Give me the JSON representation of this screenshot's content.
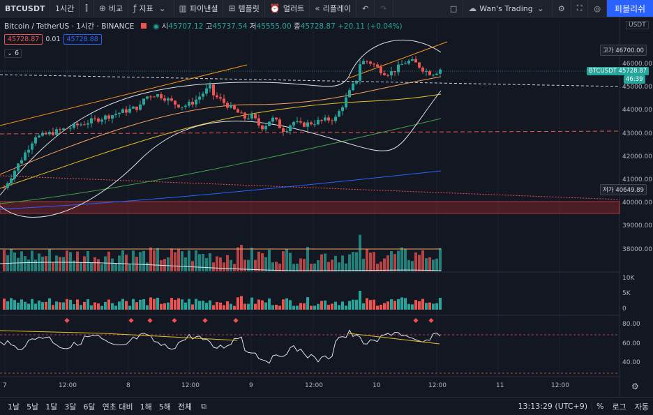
{
  "toolbar": {
    "symbol": "BTCUSDT",
    "interval": "1시간",
    "compare": "비교",
    "indicators": "지표",
    "pine": "파이낸셜",
    "templates": "템플릿",
    "alert": "얼러트",
    "replay": "리플레이",
    "layout_name": "Wan's Trading",
    "publish": "퍼블리쉬"
  },
  "legend": {
    "title": "Bitcoin / TetherUS · 1시간 · BINANCE",
    "open_label": "시",
    "open": "45707.12",
    "high_label": "고",
    "high": "45737.54",
    "low_label": "저",
    "low": "45555.00",
    "close_label": "종",
    "close": "45728.87",
    "change": "+20.11 (+0.04%)",
    "sell_price": "45728.87",
    "spread": "0.01",
    "buy_price": "45728.88",
    "collapse_count": "6"
  },
  "price_axis": {
    "currency": "USDT",
    "ticks": [
      "46000.00",
      "45000.00",
      "44000.00",
      "43000.00",
      "42000.00",
      "41000.00",
      "40000.00",
      "39000.00",
      "38000.00"
    ],
    "high_tag_label": "고가",
    "high_tag_value": "46700.00",
    "current_tag_symbol": "BTCUSDT",
    "current_tag_value": "45728.87",
    "countdown": "46:39",
    "low_tag_label": "저가",
    "low_tag_value": "40649.89"
  },
  "volume_axis": {
    "ticks": [
      "10K",
      "5K",
      "0"
    ]
  },
  "rsi_axis": {
    "ticks": [
      "80.00",
      "60.00",
      "40.00"
    ]
  },
  "time_axis": {
    "ticks": [
      "7",
      "12:00",
      "8",
      "12:00",
      "9",
      "12:00",
      "10",
      "12:00",
      "11",
      "12:00"
    ]
  },
  "bottom": {
    "ranges": [
      "1날",
      "5날",
      "1달",
      "3달",
      "6달",
      "연초 대비",
      "1해",
      "5해",
      "전체"
    ],
    "clock": "13:13:29 (UTC+9)",
    "percent": "%",
    "log": "로그",
    "auto": "자동"
  },
  "colors": {
    "up": "#26a69a",
    "down": "#ef5350",
    "accent": "#2962ff",
    "background": "#131722"
  }
}
